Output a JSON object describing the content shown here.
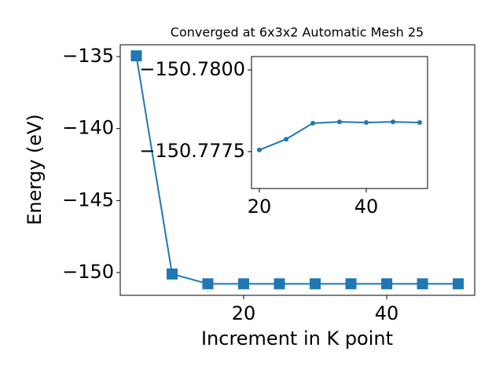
{
  "chart_data": [
    {
      "type": "line",
      "title": "Converged at 6x3x2 Automatic Mesh 25",
      "x_label": "Increment in K point",
      "y_label": "Energy (eV)",
      "x": [
        5,
        10,
        15,
        20,
        25,
        30,
        35,
        40,
        45,
        50
      ],
      "series": [
        {
          "color": "#1f77b4",
          "marker": "square",
          "values": [
            -134.95,
            -150.1,
            -150.78,
            -150.78,
            -150.78,
            -150.78,
            -150.78,
            -150.78,
            -150.78,
            -150.78
          ]
        }
      ],
      "xlim": [
        2.75,
        52.3
      ],
      "ylim": [
        -151.58,
        -134.18
      ],
      "xticks": [
        20,
        40
      ],
      "yticks": [
        {
          "value": -150,
          "label": "−150"
        },
        {
          "value": -145,
          "label": "−145"
        },
        {
          "value": -140,
          "label": "−140"
        },
        {
          "value": -135,
          "label": "−135"
        }
      ]
    },
    {
      "type": "line",
      "x": [
        20,
        25,
        30,
        35,
        40,
        45,
        50
      ],
      "series": [
        {
          "color": "#1f77b4",
          "marker": "circle",
          "values": [
            -150.77755,
            -150.77788,
            -150.77837,
            -150.77841,
            -150.77839,
            -150.77841,
            -150.77839
          ]
        }
      ],
      "xlim": [
        18.53,
        51.47
      ],
      "ylim": [
        -150.77637,
        -150.78041
      ],
      "xticks": [
        20,
        40
      ],
      "yticks": [
        {
          "value": -150.7775,
          "label": "−150.7775"
        },
        {
          "value": -150.78,
          "label": "−150.7800"
        }
      ]
    }
  ]
}
